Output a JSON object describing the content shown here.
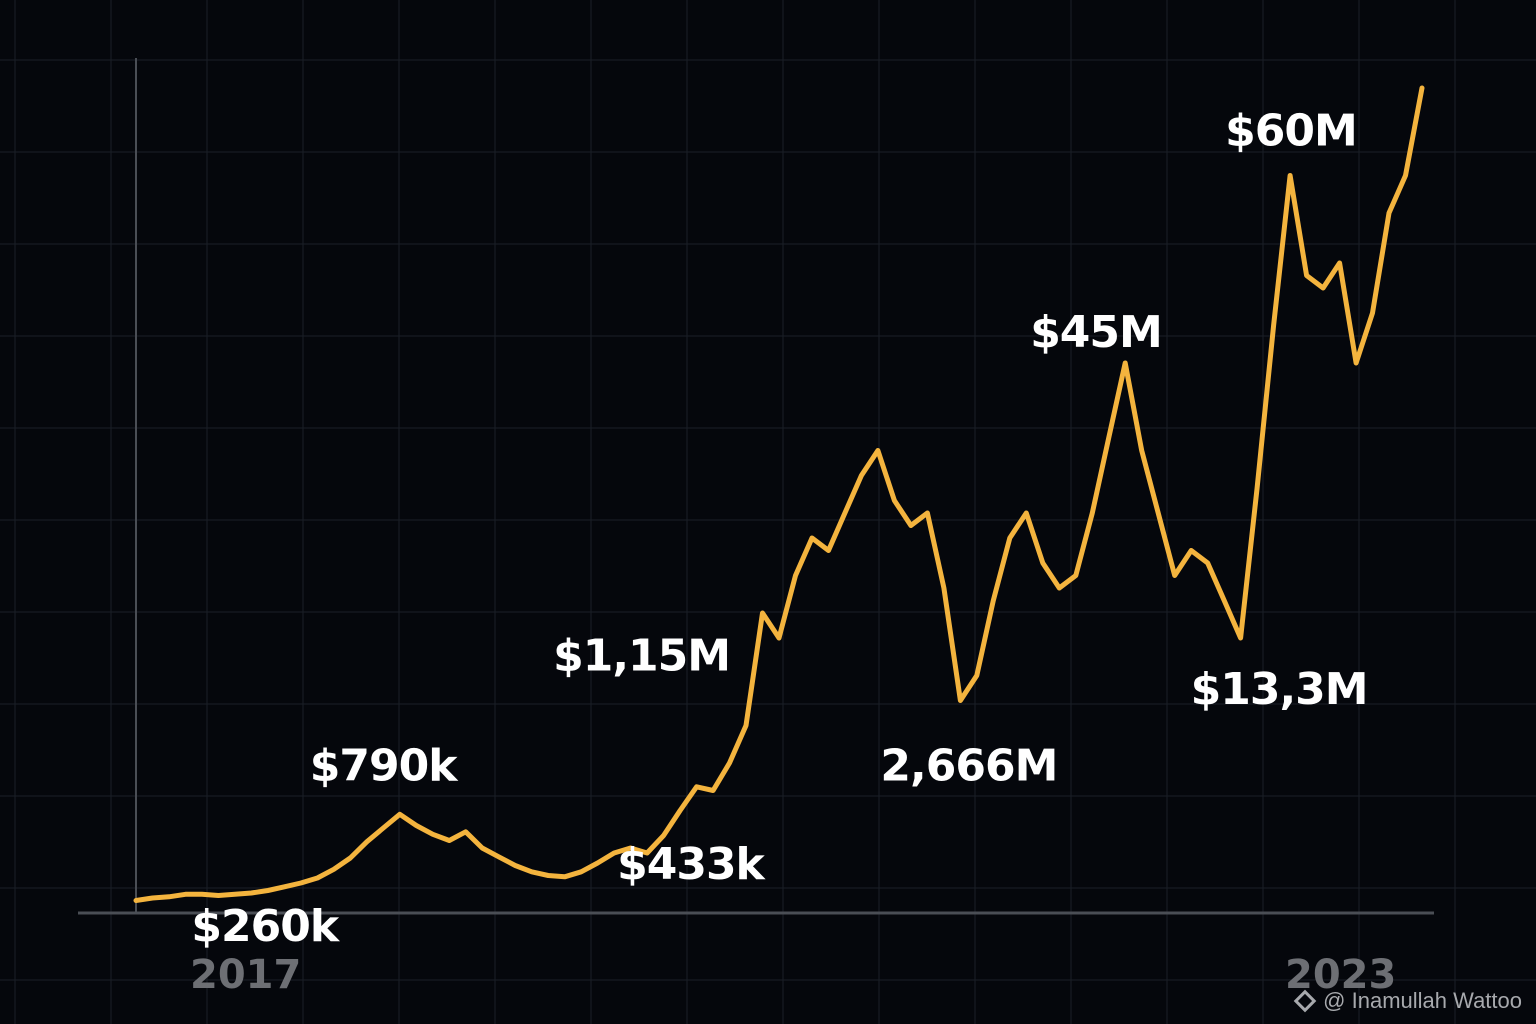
{
  "chart_data": {
    "type": "line",
    "title": "",
    "xlabel": "",
    "ylabel": "",
    "x_tick_labels": [
      "2017",
      "2023"
    ],
    "grid": true,
    "legend": "none",
    "colors": {
      "background": "#05070c",
      "line": "#f4b43e",
      "grid": "#1a1f27",
      "axis": "#4a4e55",
      "annotation_text": "#ffffff",
      "tick_text": "#6d6f74"
    },
    "series": [
      {
        "values": [
          0.1,
          0.12,
          0.13,
          0.15,
          0.15,
          0.14,
          0.15,
          0.16,
          0.18,
          0.21,
          0.24,
          0.28,
          0.35,
          0.44,
          0.57,
          0.68,
          0.79,
          0.7,
          0.63,
          0.58,
          0.65,
          0.52,
          0.45,
          0.38,
          0.33,
          0.3,
          0.29,
          0.33,
          0.4,
          0.48,
          0.52,
          0.48,
          0.62,
          0.82,
          1.01,
          0.98,
          1.2,
          1.5,
          2.4,
          2.2,
          2.7,
          3.0,
          2.9,
          3.2,
          3.5,
          3.7,
          3.3,
          3.1,
          3.2,
          2.6,
          1.7,
          1.9,
          2.5,
          3.0,
          3.2,
          2.8,
          2.6,
          2.7,
          3.2,
          3.8,
          4.4,
          3.7,
          3.2,
          2.7,
          2.9,
          2.8,
          2.5,
          2.2,
          3.4,
          4.7,
          5.9,
          5.1,
          5.0,
          5.2,
          4.4,
          4.8,
          5.6,
          5.9,
          6.6
        ]
      }
    ],
    "annotations": [
      {
        "text": "$260k",
        "index": 7
      },
      {
        "text": "$790k",
        "index": 16
      },
      {
        "text": "$433k",
        "index": 31
      },
      {
        "text": "$1,15M",
        "index": 35
      },
      {
        "text": "2,666M",
        "index": 50
      },
      {
        "text": "$45M",
        "index": 60
      },
      {
        "text": "$13,3M",
        "index": 67
      },
      {
        "text": "$60M",
        "index": 70
      }
    ]
  },
  "watermark": {
    "icon": "binance-logo-icon",
    "text": "@ Inamullah Wattoo"
  }
}
